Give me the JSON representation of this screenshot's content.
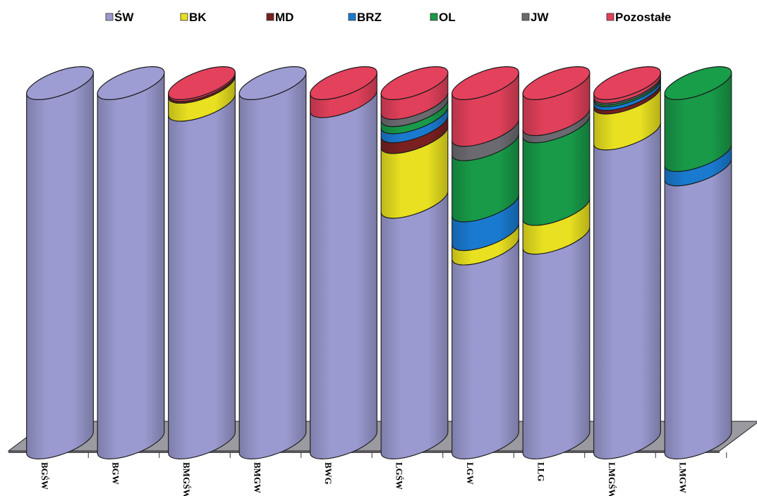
{
  "chart_data": {
    "type": "bar",
    "stacked": true,
    "orientation": "vertical",
    "style": "3d-cylinder",
    "legend_position": "top",
    "categories": [
      "BGŚW",
      "BGW",
      "BMGŚW",
      "BMGW",
      "BWG",
      "LGŚW",
      "LGW",
      "LLG",
      "LMGŚW",
      "LMGW"
    ],
    "ylim": [
      0,
      100
    ],
    "series": [
      {
        "name": "ŚW",
        "color": "#9a9ad0",
        "values": [
          100,
          100,
          94,
          100,
          95,
          67,
          54,
          57,
          86,
          76
        ]
      },
      {
        "name": "BK",
        "color": "#e8e020",
        "values": [
          0,
          0,
          5,
          0,
          0,
          18,
          4,
          8,
          10,
          0
        ]
      },
      {
        "name": "MD",
        "color": "#7a2020",
        "values": [
          0,
          0,
          0.5,
          0,
          0,
          3,
          0,
          0,
          1,
          0
        ]
      },
      {
        "name": "BRZ",
        "color": "#1a7ad0",
        "values": [
          0,
          0,
          0,
          0,
          0,
          2.5,
          8,
          0,
          1,
          4
        ]
      },
      {
        "name": "OL",
        "color": "#189a48",
        "values": [
          0,
          0,
          0,
          0,
          0,
          2,
          17,
          23,
          0.5,
          20
        ]
      },
      {
        "name": "JW",
        "color": "#6a6a70",
        "values": [
          0,
          0,
          0,
          0,
          0,
          2,
          4,
          2,
          0.5,
          0
        ]
      },
      {
        "name": "Pozostałe",
        "color": "#e0405a",
        "values": [
          0,
          0,
          0.5,
          0,
          5,
          5.5,
          13,
          10,
          1,
          0
        ]
      }
    ]
  }
}
